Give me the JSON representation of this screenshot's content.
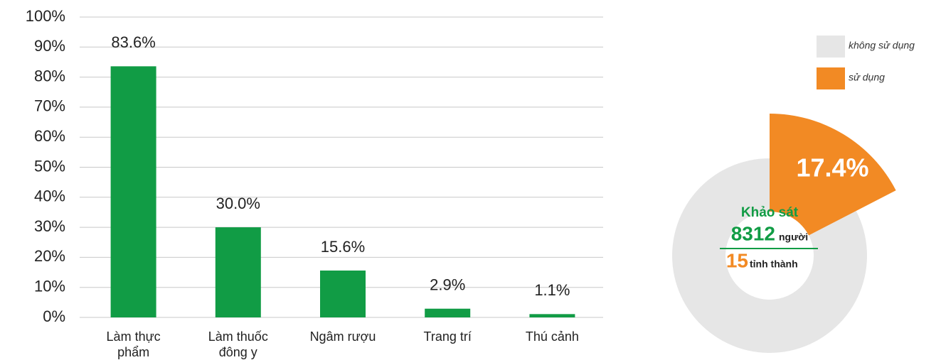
{
  "chart_data": [
    {
      "type": "bar",
      "categories": [
        "Làm thực\nphẩm",
        "Làm thuốc\nđông y",
        "Ngâm rượu",
        "Trang trí",
        "Thú cảnh"
      ],
      "values": [
        83.6,
        30.0,
        15.6,
        2.9,
        1.1
      ],
      "value_labels": [
        "83.6%",
        "30.0%",
        "15.6%",
        "2.9%",
        "1.1%"
      ],
      "color": "#119c45",
      "ylim": [
        0,
        100
      ],
      "yticks": [
        {
          "value": 0,
          "label": "0%"
        },
        {
          "value": 10,
          "label": "10%"
        },
        {
          "value": 20,
          "label": "20%"
        },
        {
          "value": 30,
          "label": "30%"
        },
        {
          "value": 40,
          "label": "40%"
        },
        {
          "value": 50,
          "label": "50%"
        },
        {
          "value": 60,
          "label": "60%"
        },
        {
          "value": 70,
          "label": "70%"
        },
        {
          "value": 80,
          "label": "80%"
        },
        {
          "value": 90,
          "label": "90%"
        },
        {
          "value": 100,
          "label": "100%"
        }
      ],
      "grid": true
    },
    {
      "type": "donut",
      "categories": [
        "không sử dụng",
        "sử dụng"
      ],
      "values": [
        82.6,
        17.4
      ],
      "value_labels": [
        null,
        "17.4%"
      ],
      "colors": [
        "#e6e6e6",
        "#f28a24"
      ],
      "explode": [
        false,
        true
      ],
      "legend": "top-right",
      "annotations": [
        "Khảo sát",
        "8312",
        "người",
        "15",
        "tỉnh thành"
      ]
    }
  ]
}
